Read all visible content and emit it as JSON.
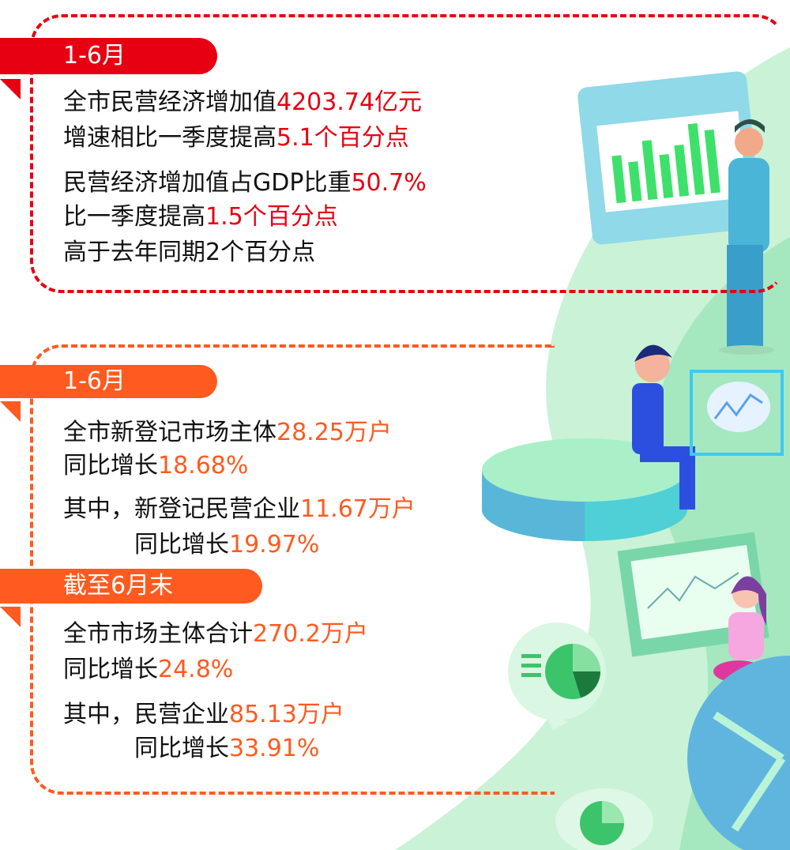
{
  "colors": {
    "section1": "#e60012",
    "section2": "#ff5a1f",
    "illustration_green": "#9ee8b8"
  },
  "section1": {
    "tab": "1-6月",
    "lines": [
      {
        "text": "全市民营经济增加值",
        "value": "4203.74亿元"
      },
      {
        "text": "增速相比一季度提高",
        "value": "5.1个百分点"
      },
      {
        "text": "民营经济增加值占GDP比重",
        "value": "50.7%"
      },
      {
        "text": "比一季度提高",
        "value": "1.5个百分点"
      },
      {
        "text": "高于去年同期2个百分点",
        "value": ""
      }
    ]
  },
  "section2": {
    "tab": "1-6月",
    "lines": [
      {
        "text": "全市新登记市场主体",
        "value": "28.25万户"
      },
      {
        "text": "同比增长",
        "value": "18.68%"
      },
      {
        "text": "其中，新登记民营企业",
        "value": "11.67万户"
      },
      {
        "text": "同比增长",
        "value": "19.97%"
      }
    ]
  },
  "section3": {
    "tab": "截至6月末",
    "lines": [
      {
        "text": "全市市场主体合计",
        "value": "270.2万户"
      },
      {
        "text": "同比增长",
        "value": "24.8%"
      },
      {
        "text": "其中，民营企业",
        "value": "85.13万户"
      },
      {
        "text": "同比增长",
        "value": "33.91%"
      }
    ]
  },
  "illustration": {
    "icons": [
      "bar-chart-board",
      "line-chart-bubble",
      "pie-chart-bubble",
      "people-figures"
    ]
  }
}
